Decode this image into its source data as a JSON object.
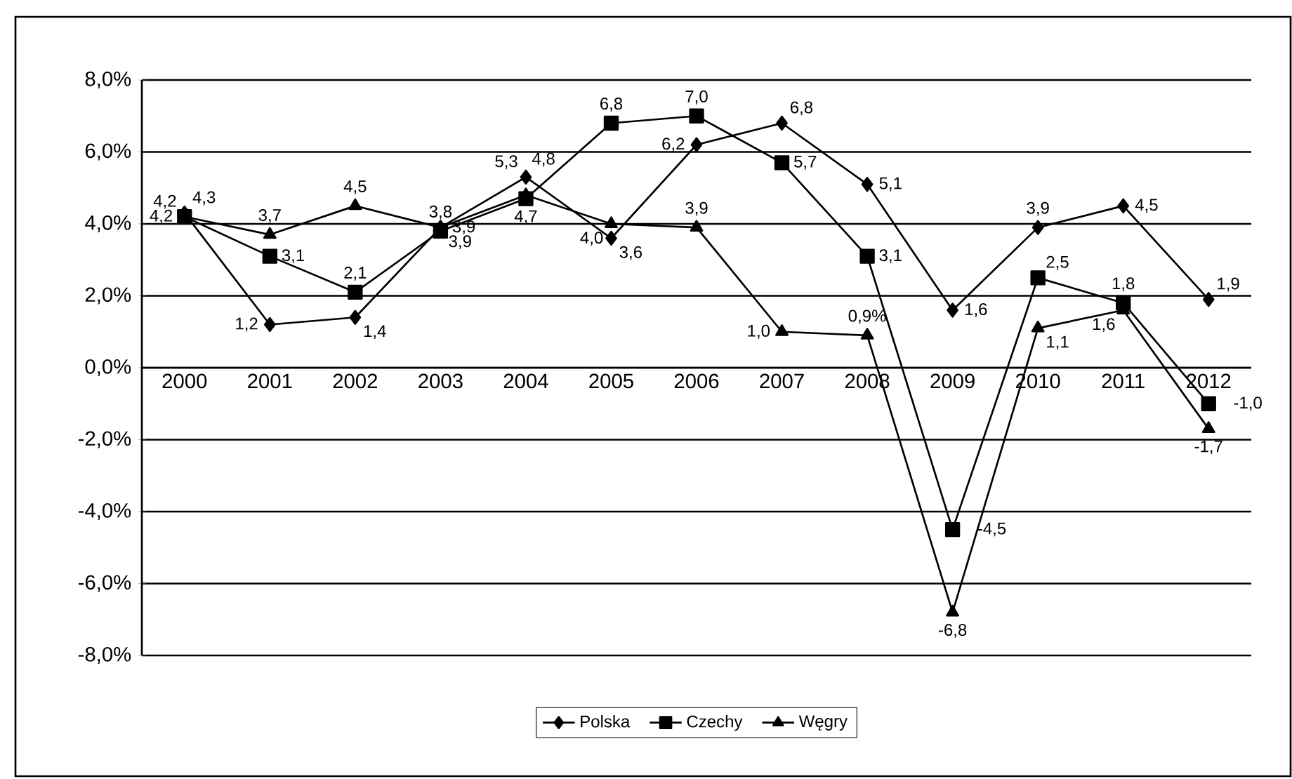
{
  "chart_data": {
    "type": "line",
    "categories": [
      "2000",
      "2001",
      "2002",
      "2003",
      "2004",
      "2005",
      "2006",
      "2007",
      "2008",
      "2009",
      "2010",
      "2011",
      "2012"
    ],
    "series": [
      {
        "name": "Polska",
        "color": "#000000",
        "marker": "diamond",
        "values": [
          4.3,
          1.2,
          1.4,
          3.9,
          5.3,
          3.6,
          6.2,
          6.8,
          5.1,
          1.6,
          3.9,
          4.5,
          1.9
        ],
        "value_labels": [
          "4,3",
          "1,2",
          "1,4",
          "3,9",
          "5,3",
          "3,6",
          "6,2",
          "6,8",
          "5,1",
          "1,6",
          "3,9",
          "4,5",
          "1,9"
        ]
      },
      {
        "name": "Czechy",
        "color": "#000000",
        "marker": "square",
        "values": [
          4.2,
          3.1,
          2.1,
          3.8,
          4.7,
          6.8,
          7.0,
          5.7,
          3.1,
          -4.5,
          2.5,
          1.8,
          -1.0
        ],
        "value_labels": [
          "4,2",
          "3,1",
          "2,1",
          "3,8",
          "4,7",
          "6,8",
          "7,0",
          "5,7",
          "3,1",
          "-4,5",
          "2,5",
          "1,8",
          "-1,0"
        ]
      },
      {
        "name": "Węgry",
        "color": "#000000",
        "marker": "triangle",
        "values": [
          4.2,
          3.7,
          4.5,
          3.9,
          4.8,
          4.0,
          3.9,
          1.0,
          0.9,
          -6.8,
          1.1,
          1.6,
          -1.7
        ],
        "value_labels": [
          "4,2",
          "3,7",
          "4,5",
          "3,9",
          "4,8",
          "4,0",
          "3,9",
          "1,0",
          "0,9%",
          "-6,8",
          "1,1",
          "1,6",
          "-1,7"
        ]
      }
    ],
    "ylim": [
      -8,
      8
    ],
    "yticks": [
      {
        "value": -8,
        "label": "-8,0%"
      },
      {
        "value": -6,
        "label": "-6,0%"
      },
      {
        "value": -4,
        "label": "-4,0%"
      },
      {
        "value": -2,
        "label": "-2,0%"
      },
      {
        "value": 0,
        "label": "0,0%"
      },
      {
        "value": 2,
        "label": "2,0%"
      },
      {
        "value": 4,
        "label": "4,0%"
      },
      {
        "value": 6,
        "label": "6,0%"
      },
      {
        "value": 8,
        "label": "8,0%"
      }
    ],
    "grid": "y",
    "legend": "bottom",
    "line_style": "solid"
  }
}
